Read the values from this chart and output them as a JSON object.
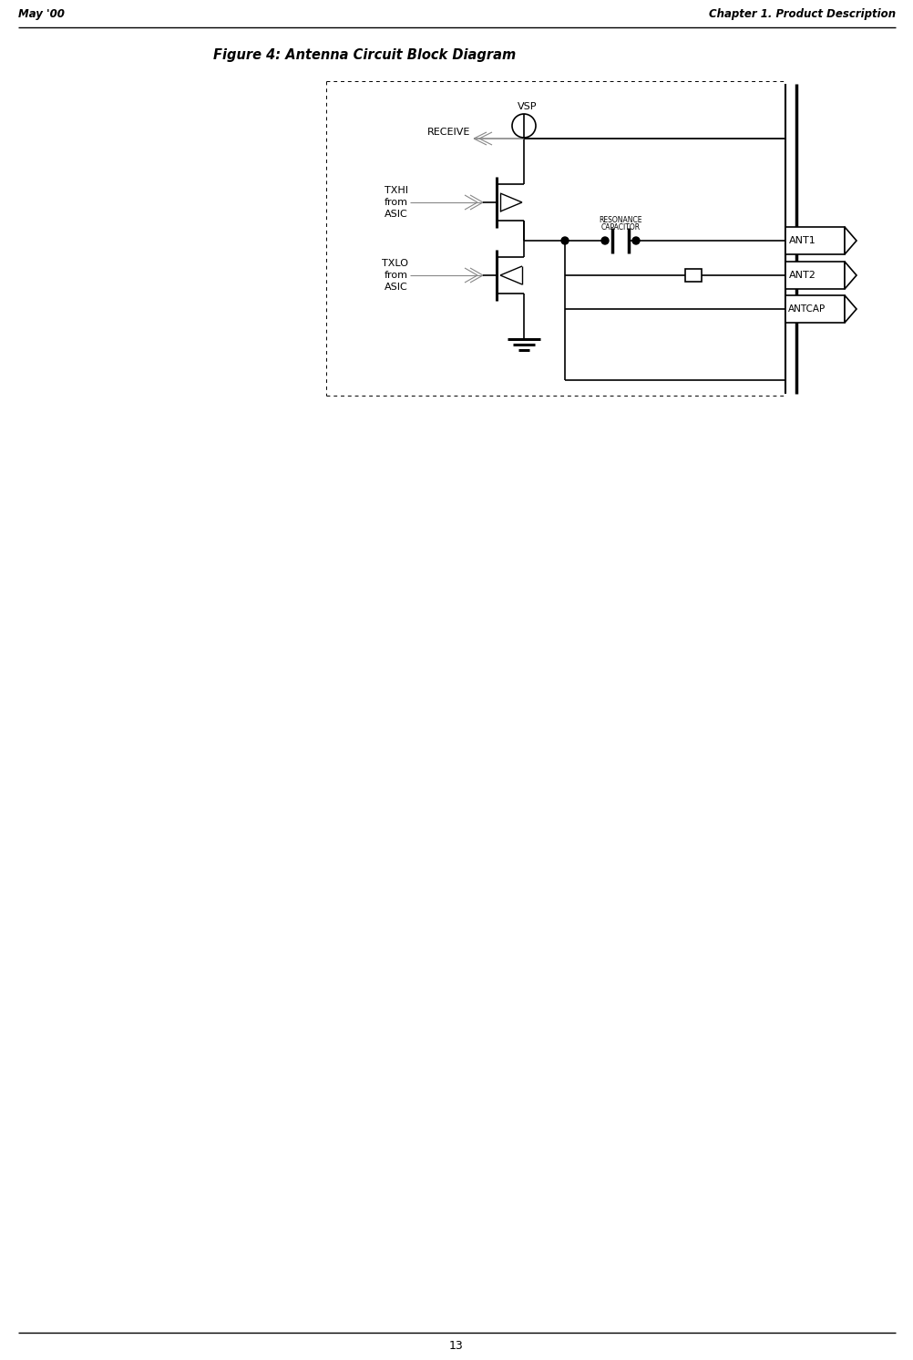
{
  "page_title_left": "May '00",
  "page_title_right": "Chapter 1. Product Description",
  "figure_title": "Figure 4: Antenna Circuit Block Diagram",
  "page_number": "13",
  "bg_color": "#ffffff",
  "line_color": "#000000",
  "text_color": "#000000",
  "gray_color": "#888888",
  "fig_width": 10.03,
  "fig_height": 14.92,
  "dpi": 100
}
